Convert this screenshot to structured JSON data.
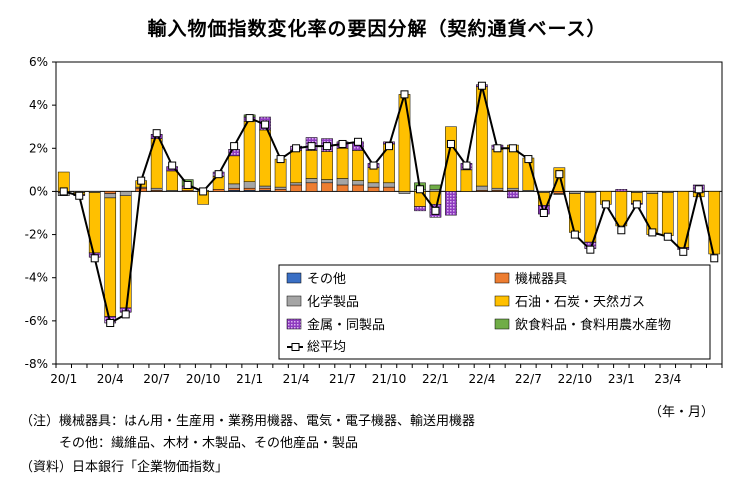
{
  "title": "輸入物価指数変化率の要因分解（契約通貨ベース）",
  "unit_label": "（年・月）",
  "notes": {
    "line1": "（注）機械器具：はん用・生産用・業務用機器、電気・電子機器、輸送用機器",
    "line2": "　　　その他：繊維品、木材・木製品、その他産品・製品",
    "line3": "（資料）日本銀行「企業物価指数」"
  },
  "colors": {
    "other": "#3a6fc4",
    "machinery": "#ed7d31",
    "chemicals": "#a5a5a5",
    "energy": "#ffc000",
    "metals": "#8e3bbf",
    "food": "#70ad47",
    "line": "#000000",
    "marker_fill": "#ffffff"
  },
  "chart_data": {
    "type": "bar",
    "stacked": true,
    "title": "輸入物価指数変化率の要因分解（契約通貨ベース）",
    "xlabel": "（年・月）",
    "ylabel": "",
    "ylim": [
      -8,
      6
    ],
    "yticks": [
      "-8%",
      "-6%",
      "-4%",
      "-2%",
      "0%",
      "2%",
      "4%",
      "6%"
    ],
    "ytick_values": [
      -8,
      -6,
      -4,
      -2,
      0,
      2,
      4,
      6
    ],
    "xtick_labels": [
      "20/1",
      "20/4",
      "20/7",
      "20/10",
      "21/1",
      "21/4",
      "21/7",
      "21/10",
      "22/1",
      "22/4",
      "22/7",
      "22/10",
      "23/1",
      "23/4"
    ],
    "xtick_every": 3,
    "categories": [
      "20/1",
      "20/2",
      "20/3",
      "20/4",
      "20/5",
      "20/6",
      "20/7",
      "20/8",
      "20/9",
      "20/10",
      "20/11",
      "20/12",
      "21/1",
      "21/2",
      "21/3",
      "21/4",
      "21/5",
      "21/6",
      "21/7",
      "21/8",
      "21/9",
      "21/10",
      "21/11",
      "21/12",
      "22/1",
      "22/2",
      "22/3",
      "22/4",
      "22/5",
      "22/6",
      "22/7",
      "22/8",
      "22/9",
      "22/10",
      "22/11",
      "22/12",
      "23/1",
      "23/2",
      "23/3",
      "23/4",
      "23/5",
      "23/6",
      "23/7"
    ],
    "legend_position": "bottom-right-inside",
    "grid": false,
    "series": [
      {
        "name": "その他",
        "key": "other",
        "values": [
          0,
          0,
          0,
          0,
          0,
          0,
          0,
          0,
          0,
          0,
          0,
          0.05,
          0.05,
          0.05,
          0,
          0,
          0,
          0,
          0,
          0,
          0,
          0,
          0,
          0,
          0,
          0,
          0,
          0,
          0,
          0,
          0,
          0,
          0,
          0,
          0,
          0,
          0,
          0,
          0,
          0,
          0,
          0,
          0
        ]
      },
      {
        "name": "機械器具",
        "key": "machinery",
        "values": [
          -0.05,
          0,
          0,
          -0.1,
          0,
          0.15,
          0.05,
          0,
          0.05,
          0,
          0.1,
          0.1,
          0.1,
          0.1,
          0.1,
          0.3,
          0.4,
          0.4,
          0.3,
          0.3,
          0.2,
          0.2,
          0,
          0,
          0,
          0,
          0,
          0.05,
          0.05,
          0.05,
          0,
          0,
          -0.1,
          0,
          0,
          0,
          0,
          0,
          0,
          0,
          0,
          0,
          0
        ]
      },
      {
        "name": "化学製品",
        "key": "chemicals",
        "values": [
          -0.15,
          -0.05,
          -0.05,
          -0.2,
          -0.2,
          0.05,
          0.1,
          0.05,
          0,
          0.05,
          0,
          0.2,
          0.3,
          0.1,
          0.1,
          0.1,
          0.2,
          0.15,
          0.3,
          0.2,
          0.2,
          0.2,
          -0.1,
          0.1,
          0.1,
          0,
          0,
          0.2,
          0.1,
          0.1,
          0.05,
          -0.05,
          -0.05,
          -0.1,
          -0.05,
          0,
          0,
          -0.05,
          -0.1,
          -0.05,
          0,
          -0.05,
          0
        ]
      },
      {
        "name": "石油・石炭・天然ガス",
        "key": "energy",
        "values": [
          0.9,
          -0.1,
          -2.8,
          -5.5,
          -5.2,
          0.3,
          2.3,
          0.9,
          0.1,
          -0.6,
          0.6,
          1.3,
          2.8,
          2.6,
          1.3,
          1.5,
          1.3,
          1.3,
          1.4,
          1.4,
          0.7,
          1.8,
          4.5,
          -0.7,
          -0.6,
          3.0,
          1.0,
          4.6,
          1.8,
          2.0,
          1.5,
          -0.6,
          1.1,
          -1.8,
          -2.3,
          -0.6,
          -1.6,
          -0.5,
          -1.9,
          -2.0,
          -2.6,
          -0.2,
          -2.9
        ]
      },
      {
        "name": "金属・同製品",
        "key": "metals",
        "values": [
          0,
          -0.05,
          -0.2,
          -0.3,
          -0.2,
          0,
          0.2,
          0.2,
          0.1,
          0,
          0.2,
          0.3,
          0.2,
          0.6,
          0,
          0.2,
          0.6,
          0.6,
          0.3,
          0.4,
          0.2,
          0.1,
          0,
          -0.2,
          -0.6,
          -1.1,
          0.3,
          0.1,
          0.2,
          -0.3,
          0,
          -0.4,
          0,
          0,
          -0.3,
          0,
          0.1,
          -0.05,
          0,
          0,
          -0.1,
          0.3,
          0
        ]
      },
      {
        "name": "飲食料品・食料用農水産物",
        "key": "food",
        "values": [
          0,
          0,
          0,
          0,
          0,
          0,
          0,
          0,
          0.3,
          0,
          0,
          0,
          0.1,
          0,
          0,
          0,
          0,
          0,
          0,
          0,
          0,
          0,
          0,
          0.3,
          0.2,
          0,
          0,
          0,
          0,
          0,
          0,
          0,
          0,
          0,
          0,
          0,
          0,
          0,
          0,
          0,
          0,
          0,
          0
        ]
      }
    ],
    "line_series": {
      "name": "総平均",
      "key": "total",
      "values": [
        0.0,
        -0.2,
        -3.1,
        -6.1,
        -5.7,
        0.5,
        2.7,
        1.2,
        0.3,
        0.0,
        0.8,
        2.1,
        3.4,
        3.1,
        1.5,
        2.0,
        2.1,
        2.1,
        2.2,
        2.3,
        1.2,
        2.1,
        4.5,
        0.1,
        -0.9,
        2.2,
        1.2,
        4.9,
        2.0,
        2.0,
        1.5,
        -1.0,
        0.8,
        -2.0,
        -2.7,
        -0.6,
        -1.8,
        -0.6,
        -1.9,
        -2.1,
        -2.8,
        0.1,
        -3.1
      ]
    }
  }
}
